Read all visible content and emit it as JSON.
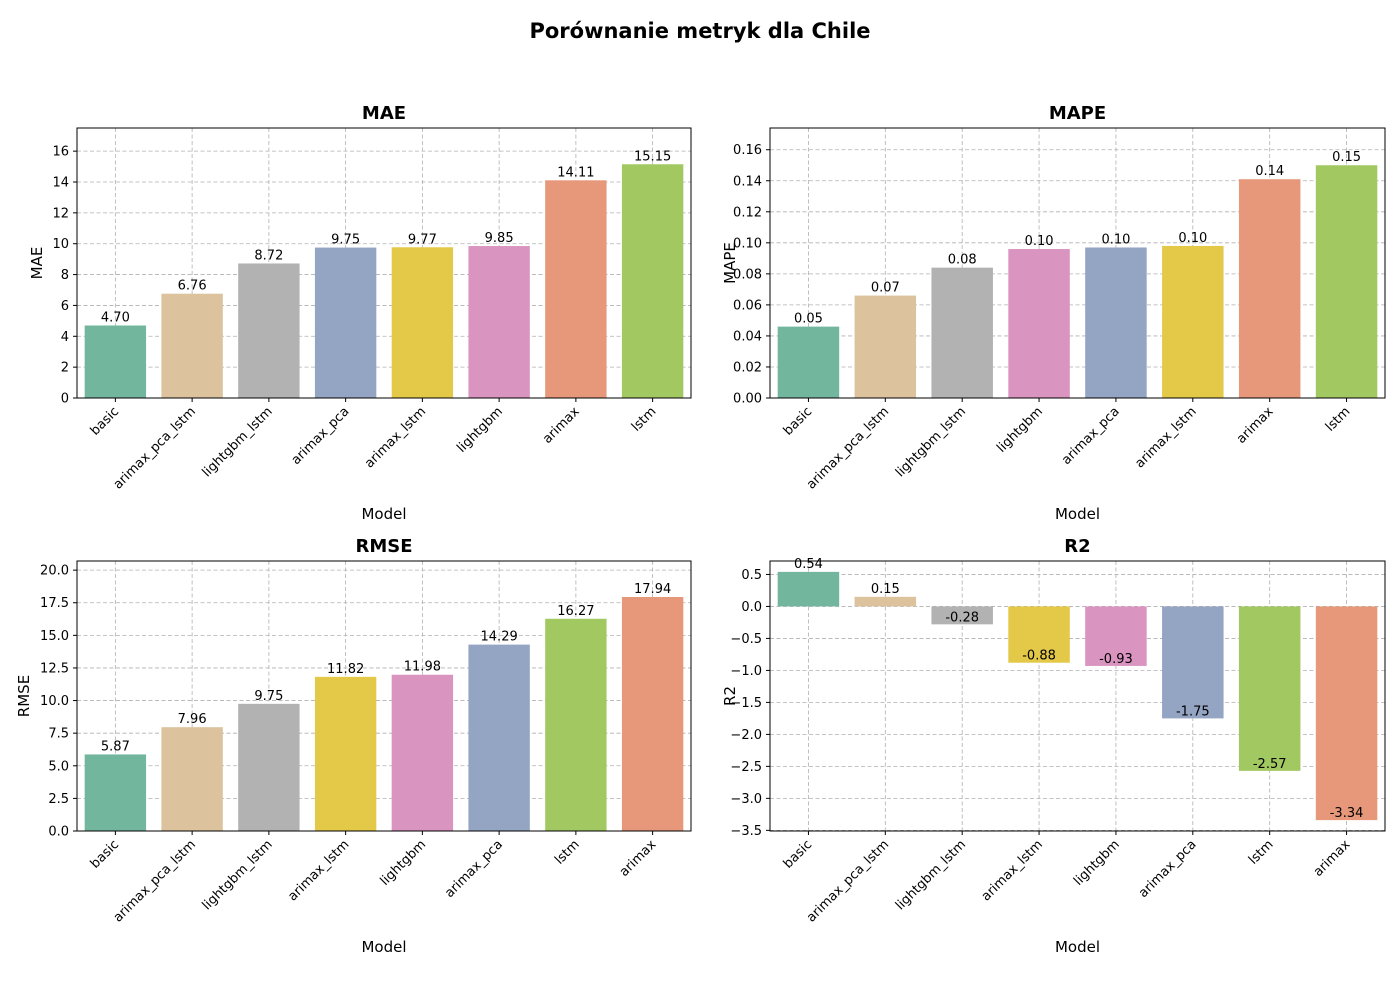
{
  "title": "Porównanie metryk dla Chile",
  "colors": {
    "basic": "#73b69e",
    "arimax_pca_lstm": "#dcc39e",
    "lightgbm_lstm": "#b2b2b2",
    "arimax_pca": "#94a4c3",
    "arimax_lstm": "#e4c949",
    "lightgbm": "#da94c0",
    "arimax": "#e8987a",
    "lstm": "#a2c862"
  },
  "chart_data": [
    {
      "type": "bar",
      "title": "MAE",
      "xlabel": "Model",
      "ylabel": "MAE",
      "categories": [
        "basic",
        "arimax_pca_lstm",
        "lightgbm_lstm",
        "arimax_pca",
        "arimax_lstm",
        "lightgbm",
        "arimax",
        "lstm"
      ],
      "values": [
        4.7,
        6.76,
        8.72,
        9.75,
        9.77,
        9.85,
        14.11,
        15.15
      ],
      "value_labels": [
        "4.70",
        "6.76",
        "8.72",
        "9.75",
        "9.77",
        "9.85",
        "14.11",
        "15.15"
      ],
      "ylim": [
        0,
        17.5
      ],
      "yticks": [
        0,
        2,
        4,
        6,
        8,
        10,
        12,
        14,
        16
      ],
      "ytick_labels": [
        "0",
        "2",
        "4",
        "6",
        "8",
        "10",
        "12",
        "14",
        "16"
      ],
      "grid": true
    },
    {
      "type": "bar",
      "title": "MAPE",
      "xlabel": "Model",
      "ylabel": "MAPE",
      "categories": [
        "basic",
        "arimax_pca_lstm",
        "lightgbm_lstm",
        "lightgbm",
        "arimax_pca",
        "arimax_lstm",
        "arimax",
        "lstm"
      ],
      "values": [
        0.046,
        0.066,
        0.084,
        0.096,
        0.097,
        0.098,
        0.141,
        0.15
      ],
      "value_labels": [
        "0.05",
        "0.07",
        "0.08",
        "0.10",
        "0.10",
        "0.10",
        "0.14",
        "0.15"
      ],
      "ylim": [
        0,
        0.174
      ],
      "yticks": [
        0,
        0.02,
        0.04,
        0.06,
        0.08,
        0.1,
        0.12,
        0.14,
        0.16
      ],
      "ytick_labels": [
        "0.00",
        "0.02",
        "0.04",
        "0.06",
        "0.08",
        "0.10",
        "0.12",
        "0.14",
        "0.16"
      ],
      "grid": true
    },
    {
      "type": "bar",
      "title": "RMSE",
      "xlabel": "Model",
      "ylabel": "RMSE",
      "categories": [
        "basic",
        "arimax_pca_lstm",
        "lightgbm_lstm",
        "arimax_lstm",
        "lightgbm",
        "arimax_pca",
        "lstm",
        "arimax"
      ],
      "values": [
        5.87,
        7.96,
        9.75,
        11.82,
        11.98,
        14.29,
        16.27,
        17.94
      ],
      "value_labels": [
        "5.87",
        "7.96",
        "9.75",
        "11.82",
        "11.98",
        "14.29",
        "16.27",
        "17.94"
      ],
      "ylim": [
        0,
        20.7
      ],
      "yticks": [
        0,
        2.5,
        5,
        7.5,
        10,
        12.5,
        15,
        17.5,
        20
      ],
      "ytick_labels": [
        "0.0",
        "2.5",
        "5.0",
        "7.5",
        "10.0",
        "12.5",
        "15.0",
        "17.5",
        "20.0"
      ],
      "grid": true
    },
    {
      "type": "bar",
      "title": "R2",
      "xlabel": "Model",
      "ylabel": "R2",
      "categories": [
        "basic",
        "arimax_pca_lstm",
        "lightgbm_lstm",
        "arimax_lstm",
        "lightgbm",
        "arimax_pca",
        "lstm",
        "arimax"
      ],
      "values": [
        0.54,
        0.15,
        -0.28,
        -0.88,
        -0.93,
        -1.75,
        -2.57,
        -3.34
      ],
      "value_labels": [
        "0.54",
        "0.15",
        "-0.28",
        "-0.88",
        "-0.93",
        "-1.75",
        "-2.57",
        "-3.34"
      ],
      "ylim": [
        -3.51,
        0.71
      ],
      "yticks": [
        -3.5,
        -3.0,
        -2.5,
        -2.0,
        -1.5,
        -1.0,
        -0.5,
        0.0,
        0.5
      ],
      "ytick_labels": [
        "−3.5",
        "−3.0",
        "−2.5",
        "−2.0",
        "−1.5",
        "−1.0",
        "−0.5",
        "0.0",
        "0.5"
      ],
      "grid": true
    }
  ]
}
